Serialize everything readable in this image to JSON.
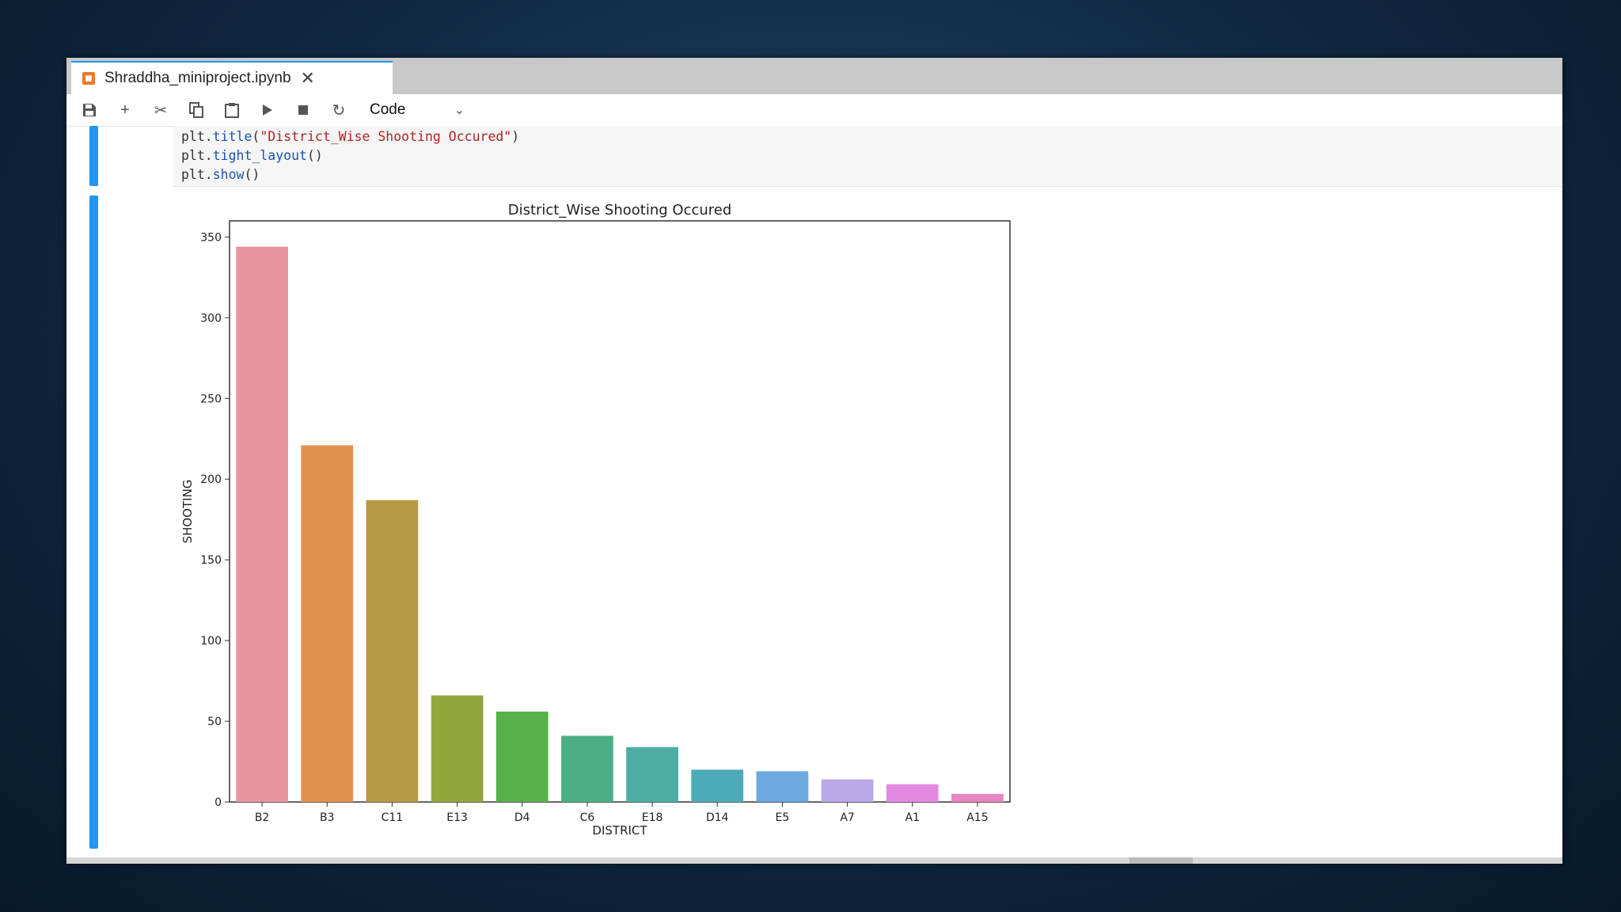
{
  "tab": {
    "title": "Shraddha_miniproject.ipynb",
    "icon": "jupyter-icon"
  },
  "toolbar": {
    "buttons": [
      "save-icon",
      "plus-icon",
      "cut-icon",
      "copy-icon",
      "paste-icon",
      "run-icon",
      "stop-icon",
      "restart-icon"
    ],
    "cell_type": "Code"
  },
  "code": {
    "line1_obj": "plt.",
    "line1_fn": "title",
    "line1_open": "(",
    "line1_str": "\"District_Wise Shooting Occured\"",
    "line1_close": ")",
    "line2_obj": "plt.",
    "line2_fn": "tight_layout",
    "line2_rest": "()",
    "line3_obj": "plt.",
    "line3_fn": "show",
    "line3_rest": "()"
  },
  "colors": {
    "accent": "#2196f3"
  },
  "chart_data": {
    "type": "bar",
    "title": "District_Wise Shooting Occured",
    "xlabel": "DISTRICT",
    "ylabel": "SHOOTING",
    "categories": [
      "B2",
      "B3",
      "C11",
      "E13",
      "D4",
      "C6",
      "E18",
      "D14",
      "E5",
      "A7",
      "A1",
      "A15"
    ],
    "values": [
      344,
      221,
      187,
      66,
      56,
      41,
      34,
      20,
      19,
      14,
      11,
      5
    ],
    "colors": [
      "#e8949e",
      "#e2914f",
      "#b79a45",
      "#93a63c",
      "#57b049",
      "#4bae86",
      "#4dada4",
      "#4daab9",
      "#6ba9df",
      "#b9a7e7",
      "#e28ae2",
      "#e786c3"
    ],
    "ylim": [
      0,
      360
    ],
    "yticks": [
      0,
      50,
      100,
      150,
      200,
      250,
      300,
      350
    ],
    "grid": false,
    "legend": "none"
  }
}
